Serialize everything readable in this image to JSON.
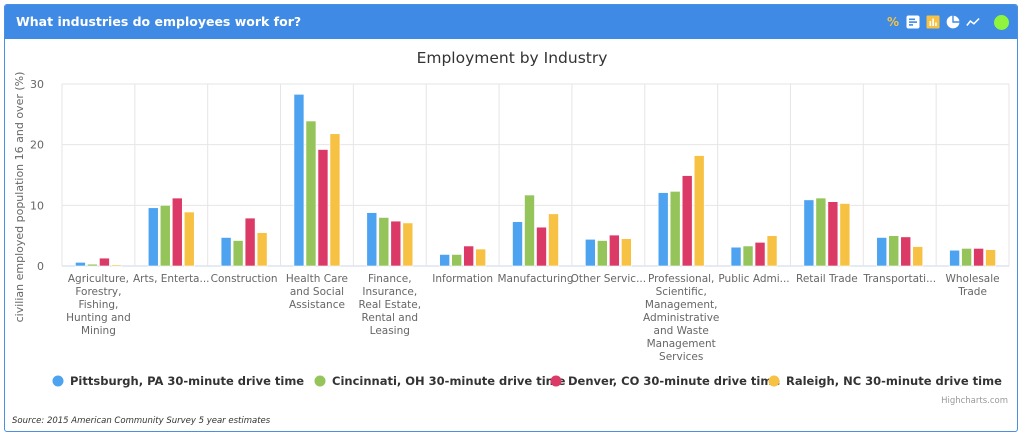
{
  "header": {
    "title": "What industries do employees work for?",
    "toolbar": [
      {
        "icon": "percent-icon",
        "label": "%",
        "color": "#f7c244"
      },
      {
        "icon": "horizontal-bar-chart-icon",
        "color": "#ffffff"
      },
      {
        "icon": "column-chart-icon",
        "color": "#f7c244"
      },
      {
        "icon": "pie-chart-icon",
        "color": "#ffffff"
      },
      {
        "icon": "line-chart-icon",
        "color": "#ffffff"
      }
    ],
    "status_color": "#8ef43e"
  },
  "footer": {
    "source": "Source: 2015 American Community Survey 5 year estimates",
    "credits": "Highcharts.com"
  },
  "chart_data": {
    "type": "bar",
    "title": "Employment by Industry",
    "xlabel": "",
    "ylabel": "civilian employed population 16 and over (%)",
    "ylim": [
      0,
      30
    ],
    "yticks": [
      0,
      10,
      20,
      30
    ],
    "grid": true,
    "legend_position": "bottom",
    "categories": [
      "Agriculture, Forestry, Fishing, Hunting and Mining",
      "Arts, Enterta...",
      "Construction",
      "Health Care and Social Assistance",
      "Finance, Insurance, Real Estate, Rental and Leasing",
      "Information",
      "Manufacturing",
      "Other Servic...",
      "Professional, Scientific, Management, Administrative and Waste Management Services",
      "Public Admi...",
      "Retail Trade",
      "Transportati...",
      "Wholesale Trade"
    ],
    "category_label_lines": [
      [
        "Agriculture,",
        "Forestry,",
        "Fishing,",
        "Hunting and",
        "Mining"
      ],
      [
        "Arts, Enterta..."
      ],
      [
        "Construction"
      ],
      [
        "Health Care",
        "and Social",
        "Assistance"
      ],
      [
        "Finance,",
        "Insurance,",
        "Real Estate,",
        "Rental and",
        "Leasing"
      ],
      [
        "Information"
      ],
      [
        "Manufacturing"
      ],
      [
        "Other Servic..."
      ],
      [
        "Professional,",
        "Scientific,",
        "Management,",
        "Administrative",
        "and Waste",
        "Management",
        "Services"
      ],
      [
        "Public Admi..."
      ],
      [
        "Retail Trade"
      ],
      [
        "Transportati..."
      ],
      [
        "Wholesale",
        "Trade"
      ]
    ],
    "series": [
      {
        "name": "Pittsburgh, PA 30-minute drive time",
        "color": "#4da3f0",
        "values": [
          0.6,
          9.6,
          4.7,
          28.3,
          8.8,
          1.9,
          7.3,
          4.4,
          12.1,
          3.1,
          10.9,
          4.7,
          2.6
        ]
      },
      {
        "name": "Cincinnati, OH 30-minute drive time",
        "color": "#94c45a",
        "values": [
          0.3,
          10.0,
          4.2,
          23.9,
          8.0,
          1.9,
          11.7,
          4.2,
          12.3,
          3.3,
          11.2,
          5.0,
          2.9
        ]
      },
      {
        "name": "Denver, CO 30-minute drive time",
        "color": "#db3966",
        "values": [
          1.3,
          11.2,
          7.9,
          19.2,
          7.4,
          3.3,
          6.4,
          5.1,
          14.9,
          3.9,
          10.6,
          4.8,
          2.9
        ]
      },
      {
        "name": "Raleigh, NC 30-minute drive time",
        "color": "#f7c244",
        "values": [
          0.2,
          8.9,
          5.5,
          21.8,
          7.1,
          2.8,
          8.6,
          4.5,
          18.2,
          5.0,
          10.3,
          3.2,
          2.7
        ]
      }
    ]
  }
}
